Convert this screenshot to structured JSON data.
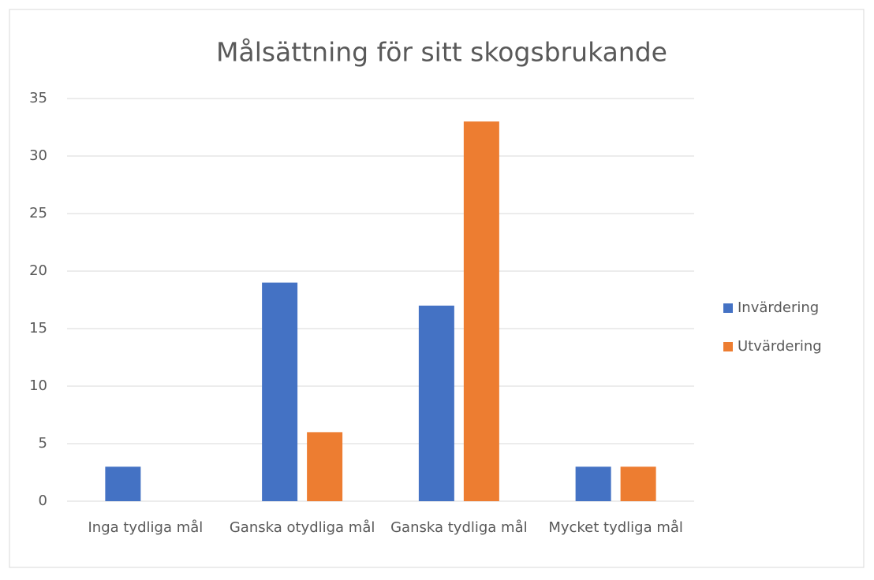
{
  "chart_data": {
    "type": "bar",
    "title": "Målsättning för sitt skogsbrukande",
    "categories": [
      "Inga tydliga mål",
      "Ganska otydliga mål",
      "Ganska tydliga mål",
      "Mycket tydliga mål"
    ],
    "series": [
      {
        "name": "Invärdering",
        "color": "#4472c4",
        "values": [
          3,
          19,
          17,
          3
        ]
      },
      {
        "name": "Utvärdering",
        "color": "#ed7d31",
        "values": [
          0,
          6,
          33,
          3
        ]
      }
    ],
    "ylim": [
      0,
      35
    ],
    "yticks": [
      0,
      5,
      10,
      15,
      20,
      25,
      30,
      35
    ],
    "grid": true,
    "legend": "right"
  }
}
